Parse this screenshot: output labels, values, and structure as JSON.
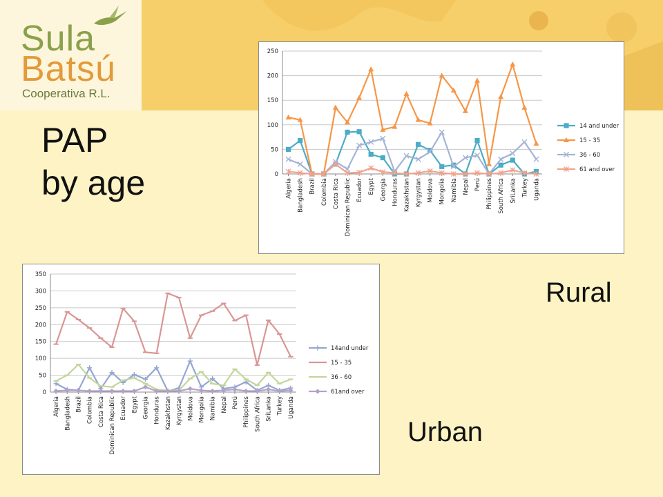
{
  "logo": {
    "line1": "Sula",
    "line2": "Batsú",
    "line3": "Cooperativa R.L."
  },
  "title": {
    "line1": "PAP",
    "line2": "by age"
  },
  "labels": {
    "rural": "Rural",
    "urban": "Urban"
  },
  "chart_data": [
    {
      "type": "line",
      "panel": "rural",
      "categories": [
        "Algeria",
        "Bangladesh",
        "Brazil",
        "Colombia",
        "Costa Rica",
        "Dominican Republic",
        "Ecuador",
        "Egypt",
        "Georgia",
        "Honduras",
        "Kazakhstan",
        "Kyrgystan",
        "Moldova",
        "Mongolia",
        "Namibia",
        "Nepal",
        "Perú",
        "Philippines",
        "South Africa",
        "SriLanka",
        "Turkey",
        "Uganda"
      ],
      "ylim": [
        0,
        250
      ],
      "yticks": [
        0,
        50,
        100,
        150,
        200,
        250
      ],
      "grid": true,
      "legend": "right",
      "series": [
        {
          "name": "14 and under",
          "color": "#4bacc6",
          "marker": "square",
          "values": [
            50,
            68,
            0,
            0,
            20,
            85,
            86,
            40,
            33,
            0,
            0,
            60,
            48,
            15,
            18,
            0,
            68,
            0,
            18,
            28,
            0,
            5
          ]
        },
        {
          "name": "15 - 35",
          "color": "#f79646",
          "marker": "triangle",
          "values": [
            115,
            110,
            0,
            0,
            135,
            105,
            155,
            213,
            90,
            96,
            163,
            110,
            103,
            200,
            170,
            128,
            190,
            20,
            157,
            223,
            135,
            62
          ]
        },
        {
          "name": "36 - 60",
          "color": "#a5b4d6",
          "marker": "x",
          "values": [
            30,
            20,
            0,
            0,
            25,
            10,
            58,
            65,
            72,
            5,
            37,
            30,
            45,
            85,
            15,
            33,
            38,
            0,
            30,
            42,
            65,
            30
          ]
        },
        {
          "name": "61 and over",
          "color": "#f2a18c",
          "marker": "star",
          "values": [
            5,
            2,
            0,
            0,
            20,
            2,
            3,
            12,
            4,
            2,
            0,
            2,
            6,
            2,
            0,
            0,
            2,
            0,
            2,
            8,
            2,
            0
          ]
        }
      ]
    },
    {
      "type": "line",
      "panel": "urban",
      "categories": [
        "Algeria",
        "Bangladesh",
        "Brazil",
        "Colombia",
        "Costa Rica",
        "Dominican Republic",
        "Ecuador",
        "Egypt",
        "Georgia",
        "Honduras",
        "Kazakhstan",
        "Kyrgystan",
        "Moldova",
        "Mongolia",
        "Namibia",
        "Nepal",
        "Perú",
        "Philippines",
        "South Africa",
        "SriLanka",
        "Turkey",
        "Uganda"
      ],
      "ylim": [
        0,
        350
      ],
      "yticks": [
        0,
        50,
        100,
        150,
        200,
        250,
        300,
        350
      ],
      "grid": true,
      "legend": "right",
      "series": [
        {
          "name": "14and under",
          "color": "#94a7d1",
          "marker": "plus",
          "values": [
            25,
            8,
            5,
            72,
            10,
            58,
            28,
            52,
            38,
            72,
            3,
            12,
            92,
            15,
            40,
            10,
            15,
            30,
            5,
            20,
            5,
            12
          ]
        },
        {
          "name": "15 - 35",
          "color": "#d99694",
          "marker": "dash",
          "values": [
            142,
            238,
            215,
            190,
            160,
            133,
            248,
            210,
            118,
            115,
            293,
            280,
            160,
            228,
            240,
            263,
            212,
            228,
            80,
            213,
            172,
            105
          ]
        },
        {
          "name": "36 - 60",
          "color": "#c3d69b",
          "marker": "dash",
          "values": [
            33,
            50,
            82,
            42,
            18,
            15,
            35,
            42,
            25,
            8,
            5,
            5,
            40,
            60,
            25,
            20,
            68,
            38,
            20,
            58,
            25,
            38
          ]
        },
        {
          "name": "61and over",
          "color": "#b3a2c7",
          "marker": "diamond",
          "values": [
            3,
            5,
            5,
            3,
            3,
            3,
            3,
            3,
            15,
            3,
            3,
            3,
            10,
            5,
            3,
            5,
            8,
            3,
            3,
            8,
            3,
            5
          ]
        }
      ]
    }
  ]
}
